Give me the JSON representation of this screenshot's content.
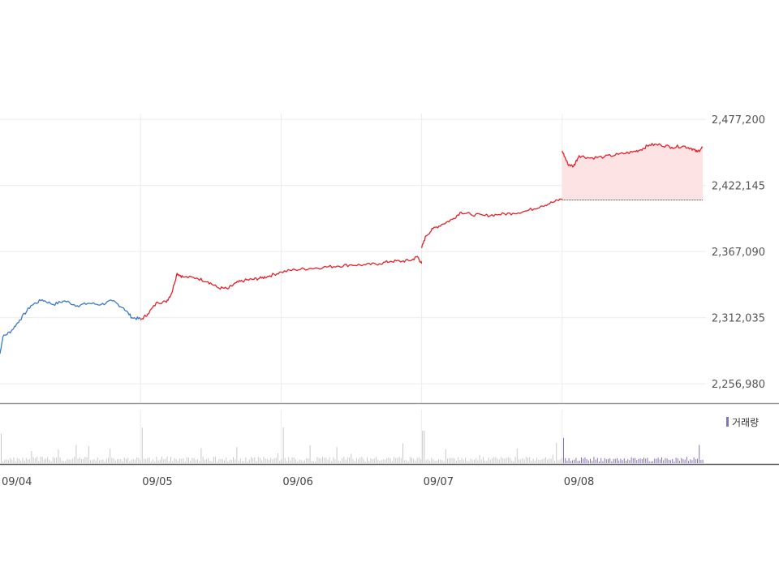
{
  "chart_data": {
    "type": "line",
    "x_labels": [
      "09/04",
      "09/05",
      "09/06",
      "09/07",
      "09/08"
    ],
    "y_ticks": [
      "2,477,200",
      "2,422,145",
      "2,367,090",
      "2,312,035",
      "2,256,980"
    ],
    "y_tick_values": [
      2477200,
      2422145,
      2367090,
      2312035,
      2256980
    ],
    "ylim": [
      2251000,
      2482000
    ],
    "previous_close": 2410000,
    "grid": true,
    "volume_label": "거래량",
    "series": [
      {
        "day": "09/04",
        "color": "#3a78c8",
        "points": [
          [
            0.0,
            2282000
          ],
          [
            0.02,
            2296000
          ],
          [
            0.08,
            2301000
          ],
          [
            0.14,
            2310000
          ],
          [
            0.22,
            2322000
          ],
          [
            0.3,
            2327000
          ],
          [
            0.38,
            2323000
          ],
          [
            0.46,
            2326000
          ],
          [
            0.55,
            2322000
          ],
          [
            0.63,
            2324000
          ],
          [
            0.72,
            2323000
          ],
          [
            0.8,
            2326000
          ],
          [
            0.88,
            2320000
          ],
          [
            0.94,
            2312000
          ],
          [
            1.0,
            2311000
          ]
        ]
      },
      {
        "day": "09/05",
        "color": "#e8202a",
        "points": [
          [
            0.0,
            2310000
          ],
          [
            0.05,
            2315000
          ],
          [
            0.12,
            2325000
          ],
          [
            0.18,
            2325000
          ],
          [
            0.22,
            2332000
          ],
          [
            0.26,
            2349000
          ],
          [
            0.3,
            2346000
          ],
          [
            0.4,
            2345000
          ],
          [
            0.48,
            2342000
          ],
          [
            0.55,
            2337000
          ],
          [
            0.62,
            2336000
          ],
          [
            0.68,
            2341000
          ],
          [
            0.74,
            2343000
          ],
          [
            0.8,
            2344000
          ],
          [
            0.86,
            2345000
          ],
          [
            0.92,
            2347000
          ],
          [
            1.0,
            2350000
          ]
        ]
      },
      {
        "day": "09/06",
        "color": "#e8202a",
        "points": [
          [
            0.0,
            2350000
          ],
          [
            0.1,
            2352000
          ],
          [
            0.2,
            2353000
          ],
          [
            0.3,
            2354000
          ],
          [
            0.4,
            2355000
          ],
          [
            0.5,
            2356000
          ],
          [
            0.6,
            2356000
          ],
          [
            0.7,
            2357000
          ],
          [
            0.78,
            2359000
          ],
          [
            0.86,
            2359000
          ],
          [
            0.93,
            2360000
          ],
          [
            0.97,
            2363000
          ],
          [
            1.0,
            2357000
          ]
        ]
      },
      {
        "day": "09/07",
        "color": "#e8202a",
        "points": [
          [
            0.0,
            2370000
          ],
          [
            0.03,
            2380000
          ],
          [
            0.08,
            2386000
          ],
          [
            0.15,
            2390000
          ],
          [
            0.22,
            2394000
          ],
          [
            0.28,
            2400000
          ],
          [
            0.35,
            2398000
          ],
          [
            0.45,
            2397000
          ],
          [
            0.55,
            2398000
          ],
          [
            0.65,
            2399000
          ],
          [
            0.75,
            2401000
          ],
          [
            0.85,
            2405000
          ],
          [
            0.93,
            2408000
          ],
          [
            1.0,
            2411000
          ]
        ]
      },
      {
        "day": "09/08",
        "color": "#e8202a",
        "points": [
          [
            0.0,
            2451000
          ],
          [
            0.04,
            2440000
          ],
          [
            0.08,
            2438000
          ],
          [
            0.12,
            2447000
          ],
          [
            0.2,
            2445000
          ],
          [
            0.3,
            2446000
          ],
          [
            0.4,
            2448000
          ],
          [
            0.5,
            2450000
          ],
          [
            0.56,
            2452000
          ],
          [
            0.62,
            2456000
          ],
          [
            0.7,
            2456000
          ],
          [
            0.78,
            2454000
          ],
          [
            0.86,
            2455000
          ],
          [
            0.92,
            2453000
          ],
          [
            0.96,
            2450000
          ],
          [
            1.0,
            2454000
          ]
        ]
      }
    ]
  }
}
